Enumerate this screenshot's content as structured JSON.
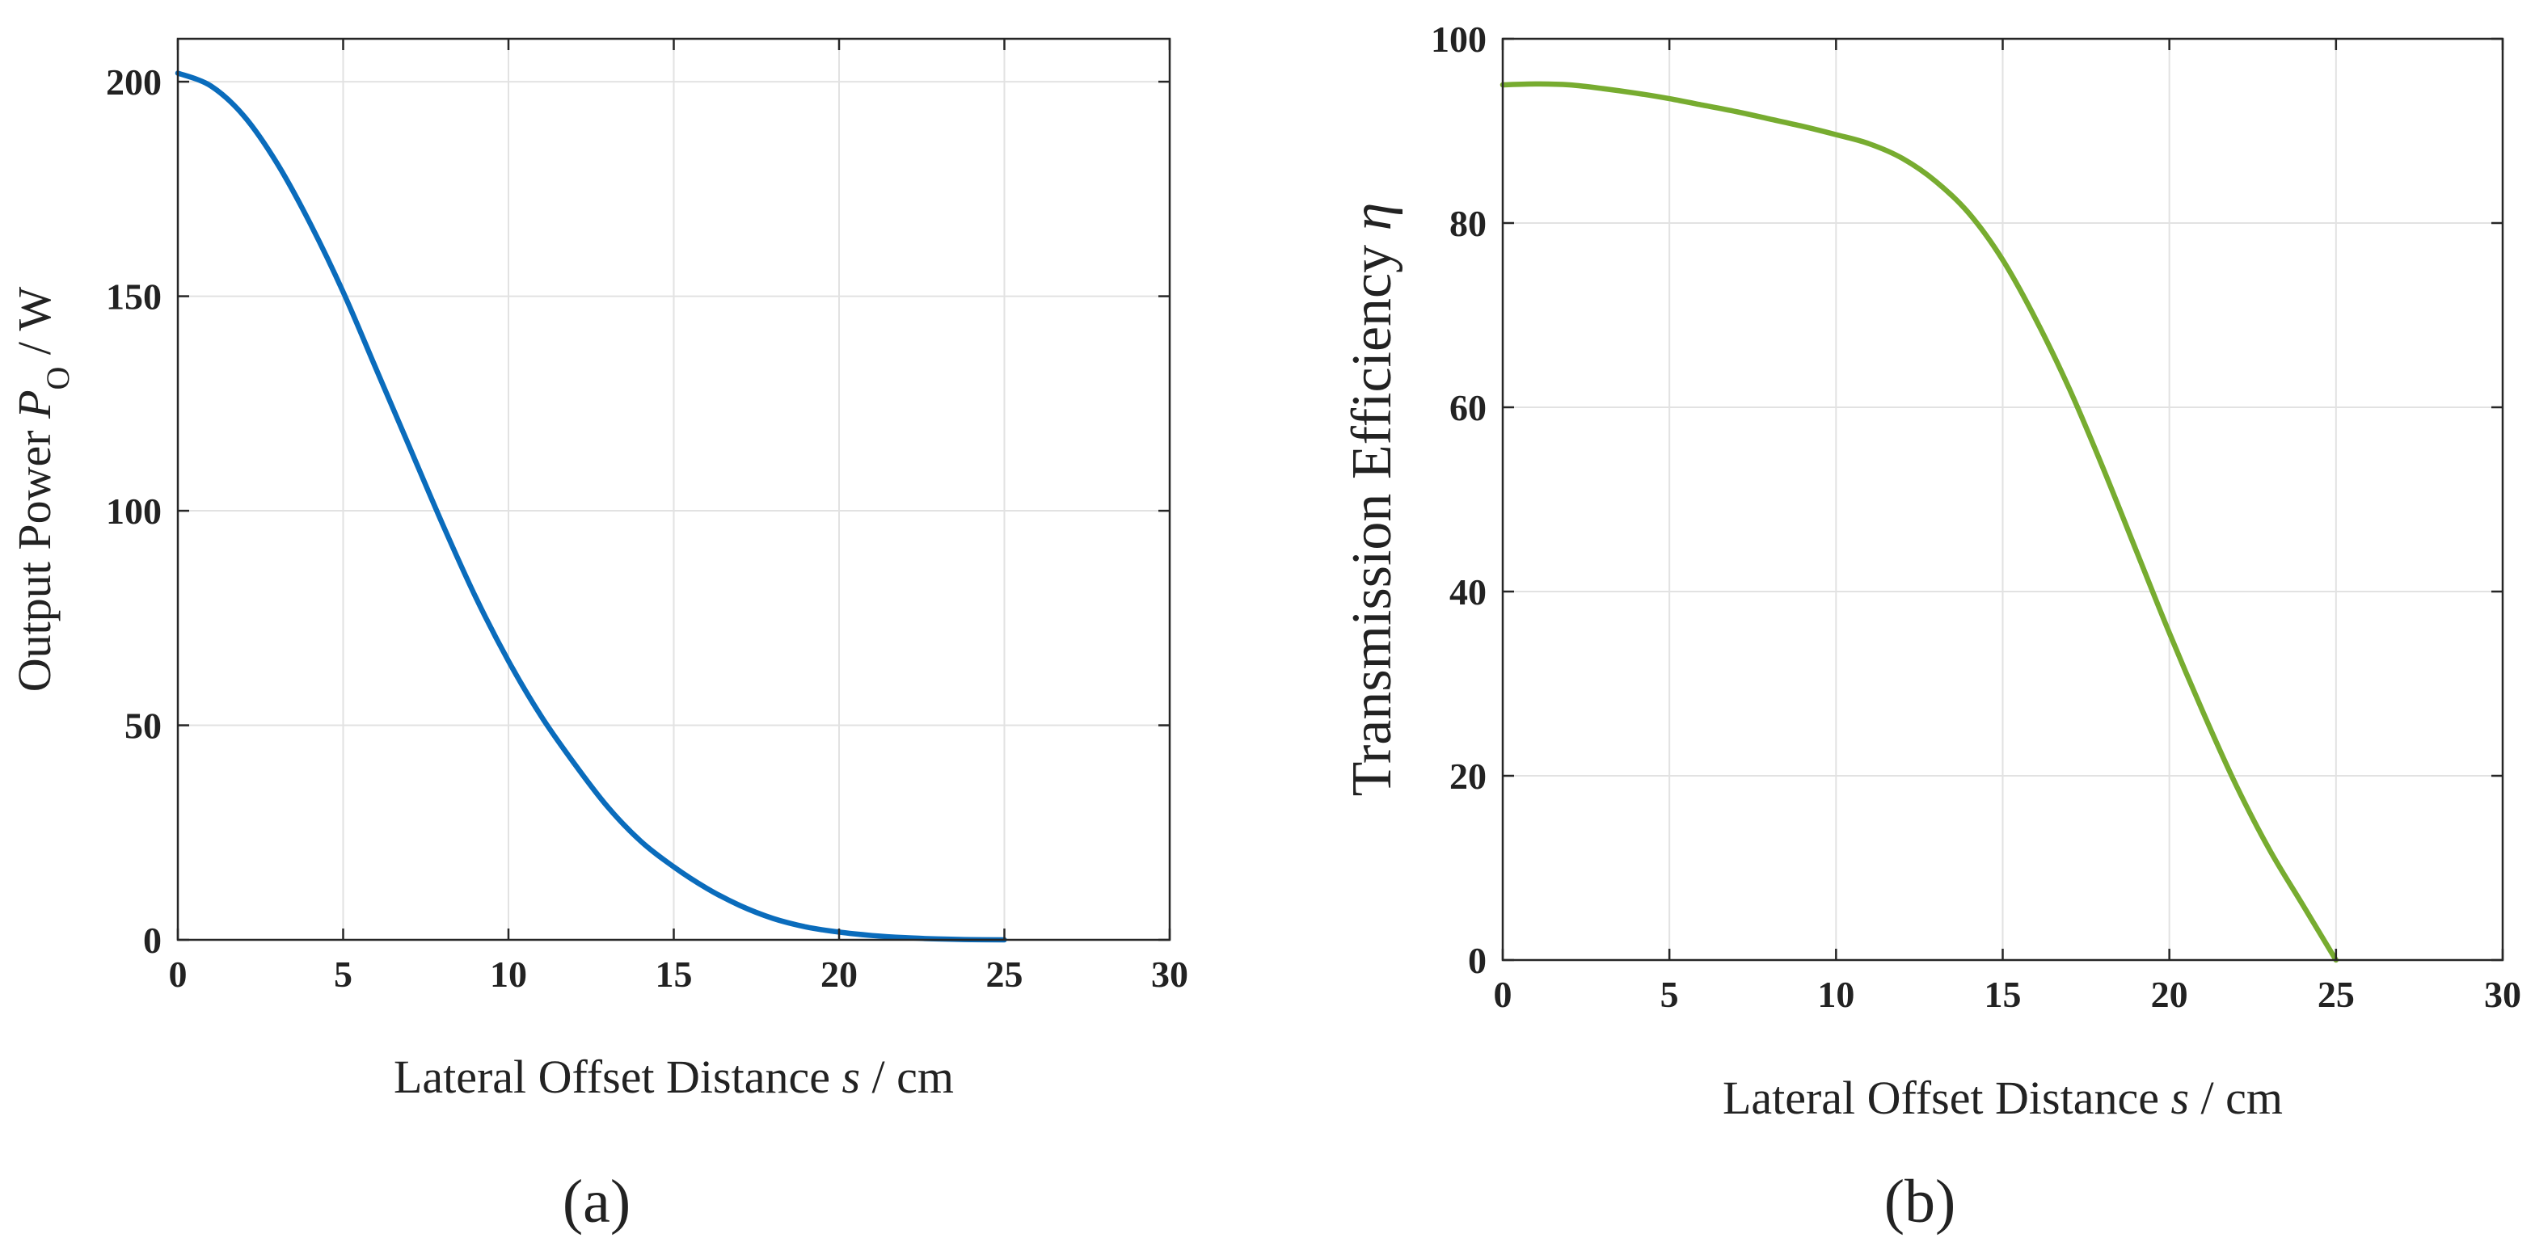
{
  "figure": {
    "panels": [
      "(a)",
      "(b)"
    ]
  },
  "chart_data": [
    {
      "type": "line",
      "panel": "(a)",
      "title": "",
      "xlabel": {
        "prefix": "Lateral Offset Distance ",
        "symbol": "s",
        "suffix": " / cm"
      },
      "ylabel": {
        "prefix": "Output Power ",
        "symbol": "P",
        "subscript": "O",
        "suffix": " / W"
      },
      "xlim": [
        0,
        30
      ],
      "ylim": [
        0,
        210
      ],
      "xticks": [
        0,
        5,
        10,
        15,
        20,
        25,
        30
      ],
      "yticks": [
        0,
        50,
        100,
        150,
        200
      ],
      "grid": true,
      "series": [
        {
          "name": "Output Power",
          "color": "#0a6cbc",
          "x": [
            0,
            1,
            2,
            3,
            4,
            5,
            6,
            7,
            8,
            9,
            10,
            11,
            12,
            13,
            14,
            15,
            16,
            17,
            18,
            19,
            20,
            21,
            22,
            23,
            24,
            25
          ],
          "y": [
            202,
            199,
            192,
            181,
            167,
            151,
            133,
            115,
            97,
            80,
            65,
            52,
            41,
            31,
            23,
            17,
            12,
            8,
            5,
            3,
            1.8,
            1.0,
            0.5,
            0.2,
            0.05,
            0
          ]
        }
      ]
    },
    {
      "type": "line",
      "panel": "(b)",
      "title": "",
      "xlabel": {
        "prefix": "Lateral Offset Distance ",
        "symbol": "s",
        "suffix": " / cm"
      },
      "ylabel": {
        "prefix": "Transmission Efficiency ",
        "symbol": "η",
        "subscript": "",
        "suffix": ""
      },
      "xlim": [
        0,
        30
      ],
      "ylim": [
        0,
        100
      ],
      "xticks": [
        0,
        5,
        10,
        15,
        20,
        25,
        30
      ],
      "yticks": [
        0,
        20,
        40,
        60,
        80,
        100
      ],
      "grid": true,
      "series": [
        {
          "name": "Transmission Efficiency",
          "color": "#77ac30",
          "x": [
            0,
            1,
            2,
            3,
            4,
            5,
            6,
            7,
            8,
            9,
            10,
            11,
            12,
            13,
            14,
            15,
            16,
            17,
            18,
            19,
            20,
            21,
            22,
            23,
            24,
            25
          ],
          "y": [
            95,
            95.1,
            95,
            94.6,
            94.1,
            93.5,
            92.8,
            92.1,
            91.3,
            90.5,
            89.6,
            88.6,
            87.0,
            84.5,
            81.0,
            76.0,
            69.5,
            62.0,
            53.5,
            44.5,
            35.5,
            27.0,
            19.0,
            12.0,
            6.0,
            0
          ]
        }
      ]
    }
  ]
}
